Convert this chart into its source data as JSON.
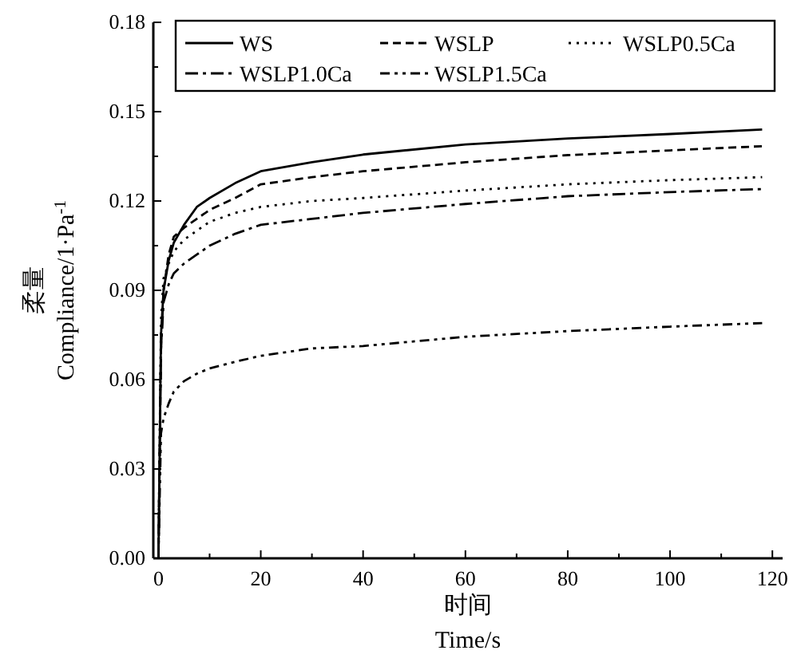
{
  "chart_data": {
    "type": "line",
    "xlabel": "时间\nTime/s",
    "ylabel": "柔量\nCompliance/1·Pa$^{-1}$",
    "x": [
      0,
      0.5,
      1,
      2,
      3,
      5,
      7.5,
      10,
      15,
      20,
      30,
      40,
      60,
      80,
      100,
      118
    ],
    "series": [
      {
        "name": "WS",
        "color": "#000000",
        "line_style": "solid",
        "values": [
          0,
          0.075,
          0.09,
          0.1,
          0.106,
          0.112,
          0.118,
          0.121,
          0.126,
          0.13,
          0.133,
          0.1356,
          0.139,
          0.141,
          0.1425,
          0.144
        ]
      },
      {
        "name": "WSLP",
        "color": "#000000",
        "line_style": "dashed",
        "values": [
          0,
          0.07,
          0.09,
          0.102,
          0.108,
          0.111,
          0.114,
          0.117,
          0.121,
          0.1256,
          0.128,
          0.13,
          0.133,
          0.1354,
          0.137,
          0.1384
        ]
      },
      {
        "name": "WSLP0.5Ca",
        "color": "#000000",
        "line_style": "dotted",
        "values": [
          0,
          0.08,
          0.094,
          0.099,
          0.103,
          0.107,
          0.11,
          0.113,
          0.116,
          0.118,
          0.12,
          0.121,
          0.1235,
          0.1256,
          0.127,
          0.128
        ]
      },
      {
        "name": "WSLP1.0Ca",
        "color": "#000000",
        "line_style": "dashdot",
        "values": [
          0,
          0.07,
          0.086,
          0.092,
          0.0957,
          0.099,
          0.102,
          0.105,
          0.109,
          0.112,
          0.114,
          0.116,
          0.119,
          0.1216,
          0.123,
          0.124
        ]
      },
      {
        "name": "WSLP1.5Ca",
        "color": "#000000",
        "line_style": "dashdotdot",
        "values": [
          0,
          0.042,
          0.047,
          0.052,
          0.056,
          0.0595,
          0.062,
          0.0638,
          0.066,
          0.068,
          0.0705,
          0.0713,
          0.0744,
          0.0763,
          0.0778,
          0.079
        ]
      }
    ],
    "xlim": [
      -1,
      122
    ],
    "xticks": [
      0,
      {
        "value": 10,
        "label": null
      },
      20,
      {
        "value": 30,
        "label": null
      },
      40,
      {
        "value": 50,
        "label": null
      },
      60,
      {
        "value": 70,
        "label": null
      },
      80,
      {
        "value": 90,
        "label": null
      },
      100,
      {
        "value": 110,
        "label": null
      },
      120
    ],
    "ylim": [
      0,
      0.18
    ],
    "yticks": [
      {
        "value": 0,
        "label": "0.00"
      },
      {
        "value": 0.015,
        "label": null
      },
      {
        "value": 0.03,
        "label": "0.03"
      },
      {
        "value": 0.045,
        "label": null
      },
      {
        "value": 0.06,
        "label": "0.06"
      },
      {
        "value": 0.075,
        "label": null
      },
      {
        "value": 0.09,
        "label": "0.09"
      },
      {
        "value": 0.105,
        "label": null
      },
      {
        "value": 0.12,
        "label": "0.12"
      },
      {
        "value": 0.135,
        "label": null
      },
      {
        "value": 0.15,
        "label": "0.15"
      },
      {
        "value": 0.165,
        "label": null
      },
      {
        "value": 0.18,
        "label": "0.18"
      }
    ],
    "legend": "top",
    "grid": false,
    "marker": "none"
  }
}
